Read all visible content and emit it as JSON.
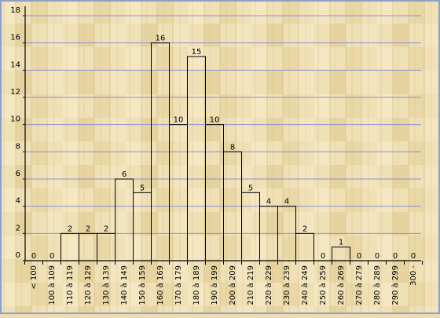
{
  "chart_data": {
    "type": "bar",
    "title": "",
    "xlabel": "",
    "ylabel": "",
    "ylim": [
      0,
      18
    ],
    "yticks": [
      "0",
      "2",
      "4",
      "6",
      "8",
      "10",
      "12",
      "14",
      "16",
      "18"
    ],
    "grid": true,
    "legend": "none",
    "categories": [
      "< 100",
      "100 à 109",
      "110 à 119",
      "120 à 129",
      "130 à 139",
      "140 à 149",
      "150 à 159",
      "160 à 169",
      "170 à 179",
      "180 à 189",
      "190 à 199",
      "200 à 209",
      "210 à 219",
      "220 à 229",
      "230 à 239",
      "240 à 249",
      "250 à 259",
      "260 à 269",
      "270 à 279",
      "280 à 289",
      "290 à 299",
      "300 -"
    ],
    "values": [
      0,
      0,
      2,
      2,
      2,
      6,
      5,
      16,
      10,
      15,
      10,
      8,
      5,
      4,
      4,
      2,
      0,
      1,
      0,
      0,
      0,
      0
    ],
    "colors": {
      "background": "#ecdcb0",
      "wood_light": "#f1e3bb",
      "wood_dark": "#d9c38c",
      "gridline": "#8f8fd0",
      "bar_stroke": "#000000",
      "border": "#8f9fc8"
    }
  }
}
